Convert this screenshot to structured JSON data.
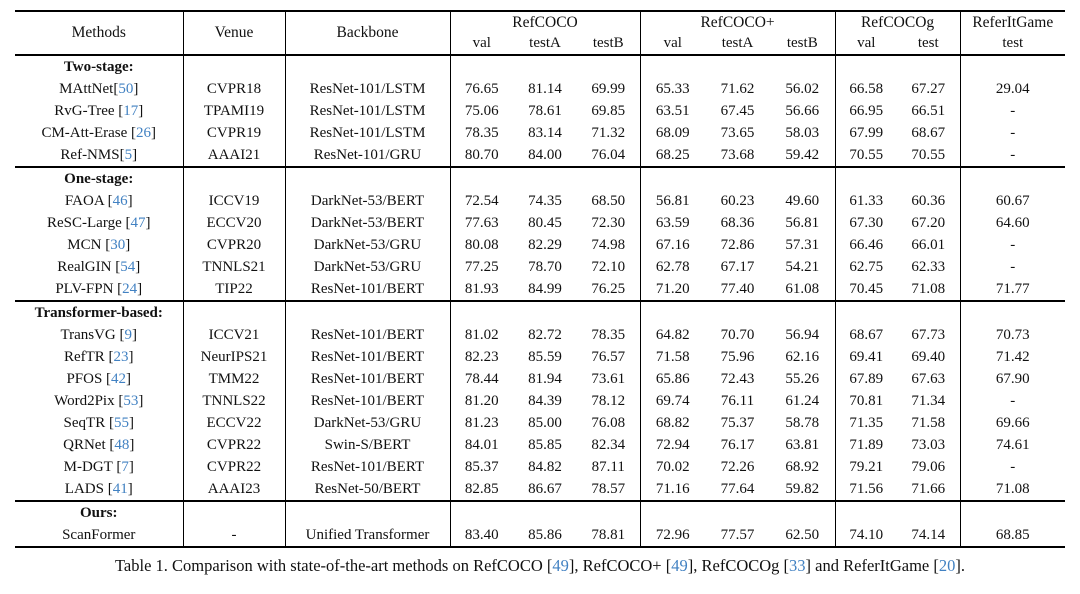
{
  "colors": {
    "citation_blue": "#4181c2",
    "text": "#111111",
    "rule": "#000000"
  },
  "table": {
    "col_groups": [
      {
        "label": "Methods"
      },
      {
        "label": "Venue"
      },
      {
        "label": "Backbone"
      },
      {
        "label": "RefCOCO",
        "subs": [
          "val",
          "testA",
          "testB"
        ]
      },
      {
        "label": "RefCOCO+",
        "subs": [
          "val",
          "testA",
          "testB"
        ]
      },
      {
        "label": "RefCOCOg",
        "subs": [
          "val",
          "test"
        ]
      },
      {
        "label": "ReferItGame",
        "subs": [
          "test"
        ]
      }
    ],
    "sections": [
      {
        "title": "Two-stage:",
        "rows": [
          {
            "method": "MAttNet",
            "cite": "50",
            "venue": "CVPR18",
            "backbone": "ResNet-101/LSTM",
            "values": [
              "76.65",
              "81.14",
              "69.99",
              "65.33",
              "71.62",
              "56.02",
              "66.58",
              "67.27",
              "29.04"
            ]
          },
          {
            "method": "RvG-Tree ",
            "cite": "17",
            "venue": "TPAMI19",
            "backbone": "ResNet-101/LSTM",
            "values": [
              "75.06",
              "78.61",
              "69.85",
              "63.51",
              "67.45",
              "56.66",
              "66.95",
              "66.51",
              "-"
            ]
          },
          {
            "method": "CM-Att-Erase ",
            "cite": "26",
            "venue": "CVPR19",
            "backbone": "ResNet-101/LSTM",
            "values": [
              "78.35",
              "83.14",
              "71.32",
              "68.09",
              "73.65",
              "58.03",
              "67.99",
              "68.67",
              "-"
            ]
          },
          {
            "method": "Ref-NMS",
            "cite": "5",
            "venue": "AAAI21",
            "backbone": "ResNet-101/GRU",
            "values": [
              "80.70",
              "84.00",
              "76.04",
              "68.25",
              "73.68",
              "59.42",
              "70.55",
              "70.55",
              "-"
            ]
          }
        ]
      },
      {
        "title": "One-stage:",
        "rows": [
          {
            "method": "FAOA ",
            "cite": "46",
            "venue": "ICCV19",
            "backbone": "DarkNet-53/BERT",
            "values": [
              "72.54",
              "74.35",
              "68.50",
              "56.81",
              "60.23",
              "49.60",
              "61.33",
              "60.36",
              "60.67"
            ]
          },
          {
            "method": "ReSC-Large ",
            "cite": "47",
            "venue": "ECCV20",
            "backbone": "DarkNet-53/BERT",
            "values": [
              "77.63",
              "80.45",
              "72.30",
              "63.59",
              "68.36",
              "56.81",
              "67.30",
              "67.20",
              "64.60"
            ]
          },
          {
            "method": "MCN ",
            "cite": "30",
            "venue": "CVPR20",
            "backbone": "DarkNet-53/GRU",
            "values": [
              "80.08",
              "82.29",
              "74.98",
              "67.16",
              "72.86",
              "57.31",
              "66.46",
              "66.01",
              "-"
            ]
          },
          {
            "method": "RealGIN ",
            "cite": "54",
            "venue": "TNNLS21",
            "backbone": "DarkNet-53/GRU",
            "values": [
              "77.25",
              "78.70",
              "72.10",
              "62.78",
              "67.17",
              "54.21",
              "62.75",
              "62.33",
              "-"
            ]
          },
          {
            "method": "PLV-FPN ",
            "cite": "24",
            "venue": "TIP22",
            "backbone": "ResNet-101/BERT",
            "values": [
              "81.93",
              "84.99",
              "76.25",
              "71.20",
              "77.40",
              "61.08",
              "70.45",
              "71.08",
              "71.77"
            ]
          }
        ]
      },
      {
        "title": "Transformer-based:",
        "rows": [
          {
            "method": "TransVG ",
            "cite": "9",
            "venue": "ICCV21",
            "backbone": "ResNet-101/BERT",
            "values": [
              "81.02",
              "82.72",
              "78.35",
              "64.82",
              "70.70",
              "56.94",
              "68.67",
              "67.73",
              "70.73"
            ]
          },
          {
            "method": "RefTR ",
            "cite": "23",
            "venue": "NeurIPS21",
            "backbone": "ResNet-101/BERT",
            "values": [
              "82.23",
              "85.59",
              "76.57",
              "71.58",
              "75.96",
              "62.16",
              "69.41",
              "69.40",
              "71.42"
            ]
          },
          {
            "method": "PFOS ",
            "cite": "42",
            "venue": "TMM22",
            "backbone": "ResNet-101/BERT",
            "values": [
              "78.44",
              "81.94",
              "73.61",
              "65.86",
              "72.43",
              "55.26",
              "67.89",
              "67.63",
              "67.90"
            ]
          },
          {
            "method": "Word2Pix ",
            "cite": "53",
            "venue": "TNNLS22",
            "backbone": "ResNet-101/BERT",
            "values": [
              "81.20",
              "84.39",
              "78.12",
              "69.74",
              "76.11",
              "61.24",
              "70.81",
              "71.34",
              "-"
            ]
          },
          {
            "method": "SeqTR ",
            "cite": "55",
            "venue": "ECCV22",
            "backbone": "DarkNet-53/GRU",
            "values": [
              "81.23",
              "85.00",
              "76.08",
              "68.82",
              "75.37",
              "58.78",
              "71.35",
              "71.58",
              "69.66"
            ]
          },
          {
            "method": "QRNet ",
            "cite": "48",
            "venue": "CVPR22",
            "backbone": "Swin-S/BERT",
            "values": [
              "84.01",
              "85.85",
              "82.34",
              "72.94",
              "76.17",
              "63.81",
              "71.89",
              "73.03",
              "74.61"
            ]
          },
          {
            "method": "M-DGT ",
            "cite": "7",
            "venue": "CVPR22",
            "backbone": "ResNet-101/BERT",
            "values": [
              "85.37",
              "84.82",
              "87.11",
              "70.02",
              "72.26",
              "68.92",
              "79.21",
              "79.06",
              "-"
            ]
          },
          {
            "method": "LADS ",
            "cite": "41",
            "venue": "AAAI23",
            "backbone": "ResNet-50/BERT",
            "values": [
              "82.85",
              "86.67",
              "78.57",
              "71.16",
              "77.64",
              "59.82",
              "71.56",
              "71.66",
              "71.08"
            ]
          }
        ]
      },
      {
        "title": "Ours:",
        "rows": [
          {
            "method": "ScanFormer",
            "cite": null,
            "venue": "-",
            "backbone": "Unified Transformer",
            "values": [
              "83.40",
              "85.86",
              "78.81",
              "72.96",
              "77.57",
              "62.50",
              "74.10",
              "74.14",
              "68.85"
            ]
          }
        ]
      }
    ]
  },
  "caption": {
    "parts": [
      {
        "text": "Table 1. Comparison with state-of-the-art methods on RefCOCO ",
        "cite": "49"
      },
      {
        "text": ", RefCOCO+ ",
        "cite": "49"
      },
      {
        "text": ", RefCOCOg ",
        "cite": "33"
      },
      {
        "text": " and ReferItGame ",
        "cite": "20"
      },
      {
        "text": "."
      }
    ]
  }
}
